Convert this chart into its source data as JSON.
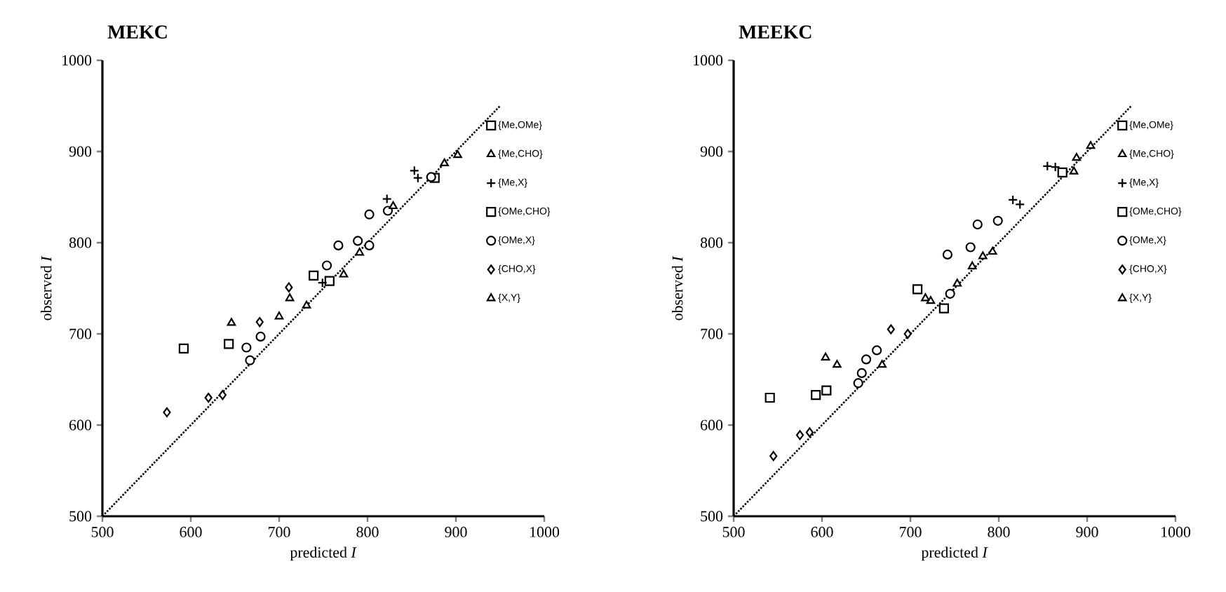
{
  "chart_data": [
    {
      "type": "scatter",
      "title": "MEKC",
      "xlabel": "predicted *I*",
      "ylabel": "observed *I*",
      "xlim": [
        500,
        1000
      ],
      "ylim": [
        500,
        1000
      ],
      "xticks": [
        500,
        600,
        700,
        800,
        900,
        1000
      ],
      "yticks": [
        500,
        600,
        700,
        800,
        900,
        1000
      ],
      "grid": false,
      "legend": "right",
      "series": [
        {
          "name": "{Me,OMe}",
          "color": "#000000",
          "marker": "square",
          "x": [
            739,
            757,
            876
          ],
          "values": [
            764,
            758,
            871
          ]
        },
        {
          "name": "{Me,CHO}",
          "color": "#000000",
          "marker": "triangle",
          "x": [
            646,
            700,
            712
          ],
          "values": [
            712,
            719,
            739
          ]
        },
        {
          "name": "{Me,X}",
          "color": "#000000",
          "marker": "cross",
          "x": [
            749,
            822,
            853,
            857
          ],
          "values": [
            756,
            848,
            879,
            871
          ]
        },
        {
          "name": "{OMe,CHO}",
          "color": "#000000",
          "marker": "square",
          "x": [
            592,
            643
          ],
          "values": [
            684,
            689
          ]
        },
        {
          "name": "{OMe,X}",
          "color": "#000000",
          "marker": "circle",
          "x": [
            663,
            667,
            679,
            754,
            767,
            789,
            802,
            802,
            823,
            872
          ],
          "values": [
            685,
            671,
            697,
            775,
            797,
            802,
            797,
            831,
            835,
            872
          ]
        },
        {
          "name": "{CHO,X}",
          "color": "#000000",
          "marker": "diamond",
          "x": [
            573,
            620,
            636,
            678,
            711
          ],
          "values": [
            614,
            630,
            633,
            713,
            751
          ]
        },
        {
          "name": "{X,Y}",
          "color": "#000000",
          "marker": "triangle",
          "x": [
            731,
            773,
            791,
            829,
            887,
            902
          ],
          "values": [
            731,
            765,
            789,
            840,
            887,
            896
          ]
        },
        {
          "type": "line",
          "color": "#000000",
          "line_style": "dotted",
          "x": [
            500,
            950
          ],
          "values": [
            500,
            950
          ]
        }
      ]
    },
    {
      "type": "scatter",
      "title": "MEEKC",
      "xlabel": "predicted *I*",
      "ylabel": "observed *I*",
      "xlim": [
        500,
        1000
      ],
      "ylim": [
        500,
        1000
      ],
      "xticks": [
        500,
        600,
        700,
        800,
        900,
        1000
      ],
      "yticks": [
        500,
        600,
        700,
        800,
        900,
        1000
      ],
      "grid": false,
      "legend": "right",
      "series": [
        {
          "name": "{Me,OMe}",
          "color": "#000000",
          "marker": "square",
          "x": [
            708,
            738,
            872
          ],
          "values": [
            749,
            728,
            877
          ]
        },
        {
          "name": "{Me,CHO}",
          "color": "#000000",
          "marker": "triangle",
          "x": [
            604,
            617,
            668,
            717,
            723
          ],
          "values": [
            674,
            666,
            666,
            739,
            736
          ]
        },
        {
          "name": "{Me,X}",
          "color": "#000000",
          "marker": "cross",
          "x": [
            816,
            824,
            855,
            864
          ],
          "values": [
            847,
            842,
            884,
            883
          ]
        },
        {
          "name": "{OMe,CHO}",
          "color": "#000000",
          "marker": "square",
          "x": [
            541,
            593,
            605
          ],
          "values": [
            630,
            633,
            638
          ]
        },
        {
          "name": "{OMe,X}",
          "color": "#000000",
          "marker": "circle",
          "x": [
            641,
            645,
            650,
            662,
            742,
            745,
            768,
            776,
            799
          ],
          "values": [
            646,
            657,
            672,
            682,
            787,
            744,
            795,
            820,
            824
          ]
        },
        {
          "name": "{CHO,X}",
          "color": "#000000",
          "marker": "diamond",
          "x": [
            545,
            575,
            586,
            678,
            697
          ],
          "values": [
            566,
            589,
            592,
            705,
            700
          ]
        },
        {
          "name": "{X,Y}",
          "color": "#000000",
          "marker": "triangle",
          "x": [
            753,
            770,
            782,
            793,
            885,
            888,
            904
          ],
          "values": [
            755,
            774,
            785,
            790,
            878,
            893,
            906
          ]
        },
        {
          "type": "line",
          "color": "#000000",
          "line_style": "dotted",
          "x": [
            500,
            950
          ],
          "values": [
            500,
            950
          ]
        }
      ]
    }
  ]
}
